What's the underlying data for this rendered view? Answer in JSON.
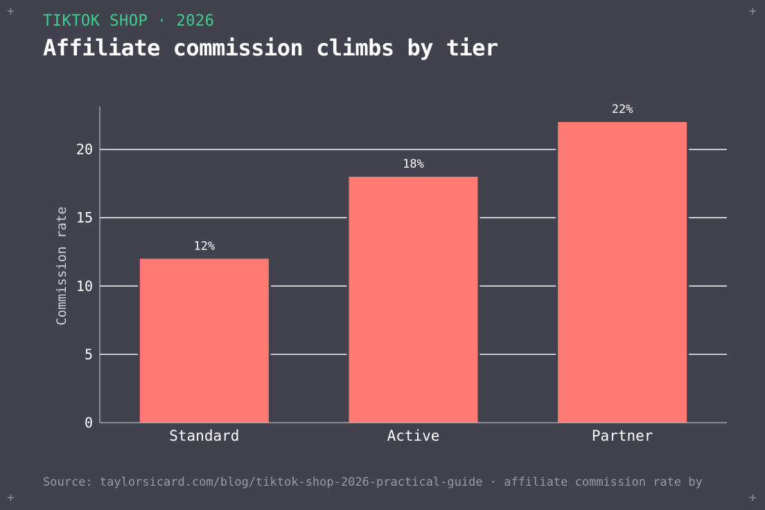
{
  "header": {
    "kicker": "TIKTOK SHOP · 2026",
    "title": "Affiliate commission climbs by tier"
  },
  "footer": {
    "source": "Source: taylorsicard.com/blog/tiktok-shop-2026-practical-guide · affiliate commission rate by"
  },
  "colors": {
    "background": "#42414e",
    "bar": "#ff7a72",
    "accent": "#3fcf8e",
    "gridline": "#ffffff",
    "muted": "#9a9aa6"
  },
  "chart_data": {
    "type": "bar",
    "title": "Affiliate commission climbs by tier",
    "xlabel": "",
    "ylabel": "Commission rate",
    "categories": [
      "Standard",
      "Active",
      "Partner"
    ],
    "values": [
      12,
      18,
      22
    ],
    "data_labels": [
      "12%",
      "18%",
      "22%"
    ],
    "yticks": [
      0,
      5,
      10,
      15,
      20
    ],
    "ylim": [
      0,
      22.5
    ],
    "grid": true
  }
}
